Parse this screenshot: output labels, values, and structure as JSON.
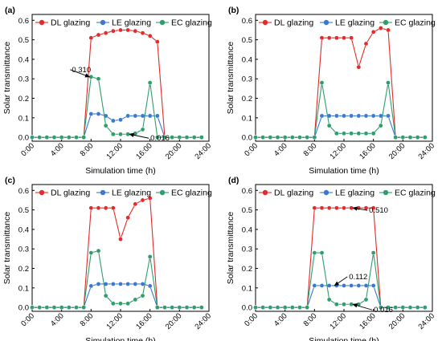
{
  "chart_data": [
    {
      "panel": "(a)",
      "type": "line",
      "xlabel": "Simulation time (h)",
      "ylabel": "Solar transmittance",
      "xticks": [
        "0:00",
        "4:00",
        "8:00",
        "12:00",
        "16:00",
        "20:00",
        "24:00"
      ],
      "xlim": [
        0,
        24
      ],
      "ylim": [
        -0.02,
        0.63
      ],
      "yticks": [
        "0.0",
        "0.1",
        "0.2",
        "0.3",
        "0.4",
        "0.5",
        "0.6"
      ],
      "legend": "top",
      "x": [
        0,
        1,
        2,
        3,
        4,
        5,
        6,
        7,
        8,
        9,
        10,
        11,
        12,
        13,
        14,
        15,
        16,
        17,
        18,
        19,
        20,
        21,
        22,
        23
      ],
      "series": [
        {
          "name": "DL glazing",
          "color": "#e32b2b",
          "values": [
            0,
            0,
            0,
            0,
            0,
            0,
            0,
            0,
            0.51,
            0.525,
            0.535,
            0.545,
            0.55,
            0.55,
            0.545,
            0.535,
            0.52,
            0.49,
            0,
            0,
            0,
            0,
            0,
            0
          ]
        },
        {
          "name": "LE glazing",
          "color": "#3a78d3",
          "values": [
            0,
            0,
            0,
            0,
            0,
            0,
            0,
            0,
            0.12,
            0.12,
            0.11,
            0.085,
            0.09,
            0.11,
            0.11,
            0.11,
            0.11,
            0.11,
            0,
            0,
            0,
            0,
            0,
            0
          ]
        },
        {
          "name": "EC glazing",
          "color": "#2e9e6b",
          "values": [
            0,
            0,
            0,
            0,
            0,
            0,
            0,
            0,
            0.31,
            0.3,
            0.06,
            0.016,
            0.016,
            0.016,
            0.02,
            0.04,
            0.28,
            0,
            0,
            0,
            0,
            0,
            0,
            0
          ]
        }
      ],
      "annotations": [
        {
          "text": "0.310",
          "x": 8,
          "y": 0.31
        },
        {
          "text": "0.016",
          "x": 13,
          "y": 0.016
        }
      ]
    },
    {
      "panel": "(b)",
      "type": "line",
      "xlabel": "Simulation time (h)",
      "ylabel": "Solar transmittance",
      "xticks": [
        "0:00",
        "4:00",
        "8:00",
        "12:00",
        "16:00",
        "20:00",
        "24:00"
      ],
      "xlim": [
        0,
        24
      ],
      "ylim": [
        -0.02,
        0.63
      ],
      "yticks": [
        "0.0",
        "0.1",
        "0.2",
        "0.3",
        "0.4",
        "0.5",
        "0.6"
      ],
      "legend": "top",
      "x": [
        0,
        1,
        2,
        3,
        4,
        5,
        6,
        7,
        8,
        9,
        10,
        11,
        12,
        13,
        14,
        15,
        16,
        17,
        18,
        19,
        20,
        21,
        22,
        23
      ],
      "series": [
        {
          "name": "DL glazing",
          "color": "#e32b2b",
          "values": [
            0,
            0,
            0,
            0,
            0,
            0,
            0,
            0,
            0,
            0.51,
            0.51,
            0.51,
            0.51,
            0.51,
            0.36,
            0.48,
            0.54,
            0.56,
            0.55,
            0,
            0,
            0,
            0,
            0
          ]
        },
        {
          "name": "LE glazing",
          "color": "#3a78d3",
          "values": [
            0,
            0,
            0,
            0,
            0,
            0,
            0,
            0,
            0,
            0.11,
            0.11,
            0.11,
            0.11,
            0.11,
            0.11,
            0.11,
            0.11,
            0.11,
            0.11,
            0,
            0,
            0,
            0,
            0
          ]
        },
        {
          "name": "EC glazing",
          "color": "#2e9e6b",
          "values": [
            0,
            0,
            0,
            0,
            0,
            0,
            0,
            0,
            0,
            0.28,
            0.06,
            0.02,
            0.02,
            0.02,
            0.02,
            0.02,
            0.02,
            0.06,
            0.28,
            0,
            0,
            0,
            0,
            0
          ]
        }
      ],
      "annotations": []
    },
    {
      "panel": "(c)",
      "type": "line",
      "xlabel": "Simulation time (h)",
      "ylabel": "Solar transmittance",
      "xticks": [
        "0:00",
        "4:00",
        "8:00",
        "12:00",
        "16:00",
        "20:00",
        "24:00"
      ],
      "xlim": [
        0,
        24
      ],
      "ylim": [
        -0.02,
        0.63
      ],
      "yticks": [
        "0.0",
        "0.1",
        "0.2",
        "0.3",
        "0.4",
        "0.5",
        "0.6"
      ],
      "legend": "top",
      "x": [
        0,
        1,
        2,
        3,
        4,
        5,
        6,
        7,
        8,
        9,
        10,
        11,
        12,
        13,
        14,
        15,
        16,
        17,
        18,
        19,
        20,
        21,
        22,
        23
      ],
      "series": [
        {
          "name": "DL glazing",
          "color": "#e32b2b",
          "values": [
            0,
            0,
            0,
            0,
            0,
            0,
            0,
            0,
            0.51,
            0.51,
            0.51,
            0.51,
            0.35,
            0.46,
            0.53,
            0.55,
            0.56,
            0,
            0,
            0,
            0,
            0,
            0,
            0
          ]
        },
        {
          "name": "LE glazing",
          "color": "#3a78d3",
          "values": [
            0,
            0,
            0,
            0,
            0,
            0,
            0,
            0,
            0.11,
            0.12,
            0.12,
            0.12,
            0.12,
            0.12,
            0.12,
            0.12,
            0.11,
            0,
            0,
            0,
            0,
            0,
            0,
            0
          ]
        },
        {
          "name": "EC glazing",
          "color": "#2e9e6b",
          "values": [
            0,
            0,
            0,
            0,
            0,
            0,
            0,
            0,
            0.28,
            0.29,
            0.06,
            0.02,
            0.02,
            0.02,
            0.04,
            0.06,
            0.26,
            0,
            0,
            0,
            0,
            0,
            0,
            0
          ]
        }
      ],
      "annotations": []
    },
    {
      "panel": "(d)",
      "type": "line",
      "xlabel": "Simulation time (h)",
      "ylabel": "Solar transmittance",
      "xticks": [
        "0:00",
        "4:00",
        "8:00",
        "12:00",
        "16:00",
        "20:00",
        "24:00"
      ],
      "xlim": [
        0,
        24
      ],
      "ylim": [
        -0.02,
        0.63
      ],
      "yticks": [
        "0.0",
        "0.1",
        "0.2",
        "0.3",
        "0.4",
        "0.5",
        "0.6"
      ],
      "legend": "top",
      "x": [
        0,
        1,
        2,
        3,
        4,
        5,
        6,
        7,
        8,
        9,
        10,
        11,
        12,
        13,
        14,
        15,
        16,
        17,
        18,
        19,
        20,
        21,
        22,
        23
      ],
      "series": [
        {
          "name": "DL glazing",
          "color": "#e32b2b",
          "values": [
            0,
            0,
            0,
            0,
            0,
            0,
            0,
            0,
            0.51,
            0.51,
            0.51,
            0.51,
            0.51,
            0.51,
            0.51,
            0.51,
            0.51,
            0,
            0,
            0,
            0,
            0,
            0,
            0
          ]
        },
        {
          "name": "LE glazing",
          "color": "#3a78d3",
          "values": [
            0,
            0,
            0,
            0,
            0,
            0,
            0,
            0,
            0.112,
            0.112,
            0.112,
            0.112,
            0.112,
            0.112,
            0.112,
            0.112,
            0.112,
            0,
            0,
            0,
            0,
            0,
            0,
            0
          ]
        },
        {
          "name": "EC glazing",
          "color": "#2e9e6b",
          "values": [
            0,
            0,
            0,
            0,
            0,
            0,
            0,
            0,
            0.28,
            0.28,
            0.04,
            0.016,
            0.016,
            0.016,
            0.016,
            0.04,
            0.28,
            0,
            0,
            0,
            0,
            0,
            0,
            0
          ]
        }
      ],
      "annotations": [
        {
          "text": "0.510",
          "x": 13,
          "y": 0.51
        },
        {
          "text": "0.112",
          "x": 10.5,
          "y": 0.112
        },
        {
          "text": "0.016",
          "x": 13,
          "y": 0.016
        }
      ]
    }
  ]
}
